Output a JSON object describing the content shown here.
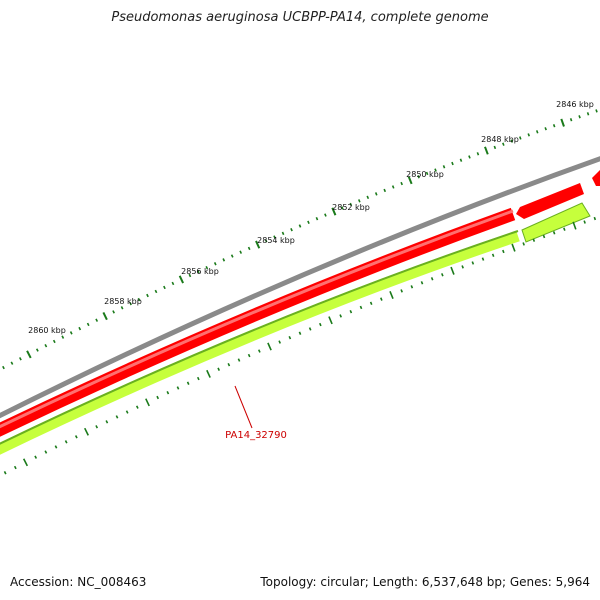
{
  "title": "Pseudomonas aeruginosa UCBPP-PA14, complete genome",
  "accession": "Accession: NC_008463",
  "summary": "Topology: circular; Length: 6,537,648 bp; Genes: 5,964",
  "scale_labels": [
    "2846 kbp",
    "2848 kbp",
    "2850 kbp",
    "2852 kbp",
    "2854 kbp",
    "2856 kbp",
    "2858 kbp",
    "2860 kbp"
  ],
  "gene_label": "PA14_32790",
  "colors": {
    "backbone": "#808080",
    "forward_strand": "#ff0000",
    "reverse_strand": "#c6ff3c",
    "ticks": "#1a7a1a",
    "label": "#cc0000"
  }
}
